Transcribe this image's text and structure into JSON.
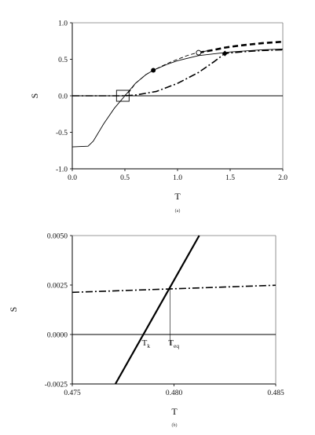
{
  "chart_data": [
    {
      "panel": "(a)",
      "type": "line",
      "caption": "(a)",
      "xlabel": "T",
      "ylabel": "S",
      "xlim": [
        0.0,
        2.0
      ],
      "ylim": [
        -1.0,
        1.0
      ],
      "xticks": [
        "0.0",
        "0.5",
        "1.0",
        "1.5",
        "2.0"
      ],
      "yticks": [
        "-1.0",
        "-0.5",
        "0.0",
        "0.5",
        "1.0"
      ],
      "grid": false,
      "legend": "none",
      "reference_lines": [
        {
          "axis": "y",
          "value": 0.0
        }
      ],
      "series": [
        {
          "style": "solid-thin",
          "x": [
            0.0,
            0.15,
            0.2,
            0.3,
            0.4,
            0.5,
            0.6,
            0.7,
            0.77,
            0.9,
            1.0,
            1.2,
            1.5,
            1.8,
            2.0
          ],
          "y": [
            -0.7,
            -0.69,
            -0.62,
            -0.38,
            -0.17,
            0.0,
            0.17,
            0.29,
            0.35,
            0.43,
            0.48,
            0.55,
            0.6,
            0.63,
            0.64
          ]
        },
        {
          "style": "dashed-thin",
          "x": [
            0.0,
            0.45,
            0.5,
            0.55,
            0.6,
            0.7,
            0.77,
            0.9,
            1.0,
            1.1,
            1.2,
            1.3
          ],
          "y": [
            0.0,
            0.0,
            0.005,
            0.07,
            0.17,
            0.29,
            0.35,
            0.44,
            0.5,
            0.555,
            0.595,
            0.62
          ]
        },
        {
          "style": "dashed-thick",
          "x": [
            1.2,
            1.35,
            1.45,
            1.6,
            1.8,
            2.0
          ],
          "y": [
            0.59,
            0.63,
            0.66,
            0.69,
            0.72,
            0.74
          ]
        },
        {
          "style": "dashdot",
          "x": [
            0.0,
            0.5,
            0.6,
            0.8,
            1.0,
            1.2,
            1.35,
            1.45,
            1.6,
            1.8,
            2.0
          ],
          "y": [
            0.0,
            0.0,
            0.01,
            0.06,
            0.17,
            0.32,
            0.47,
            0.58,
            0.6,
            0.62,
            0.63
          ]
        }
      ],
      "markers": [
        {
          "shape": "filled-circle",
          "x": 0.77,
          "y": 0.35
        },
        {
          "shape": "open-circle",
          "x": 1.2,
          "y": 0.59
        },
        {
          "shape": "filled-diamond",
          "x": 1.45,
          "y": 0.58
        },
        {
          "shape": "open-square",
          "x": 0.48,
          "y": 0.0
        }
      ]
    },
    {
      "panel": "(b)",
      "type": "line",
      "caption": "(b)",
      "xlabel": "T",
      "ylabel": "S",
      "xlim": [
        0.475,
        0.485
      ],
      "ylim": [
        -0.0025,
        0.005
      ],
      "xticks": [
        "0.475",
        "0.480",
        "0.485"
      ],
      "yticks": [
        "-0.0025",
        "0.0000",
        "0.0025",
        "0.0050"
      ],
      "grid": false,
      "legend": "none",
      "reference_lines": [
        {
          "axis": "y",
          "value": 0.0
        }
      ],
      "series": [
        {
          "style": "solid-thick",
          "x": [
            0.47712,
            0.48124
          ],
          "y": [
            -0.0025,
            0.005
          ]
        },
        {
          "style": "dashdot",
          "x": [
            0.475,
            0.485
          ],
          "y": [
            0.00213,
            0.00249
          ]
        }
      ],
      "annotations": [
        {
          "base": "T",
          "sub": "k",
          "x": 0.4785,
          "y": 0.0
        },
        {
          "base": "T",
          "sub": "eq",
          "x": 0.4798,
          "y": 0.00232,
          "dropline": true
        }
      ]
    }
  ]
}
